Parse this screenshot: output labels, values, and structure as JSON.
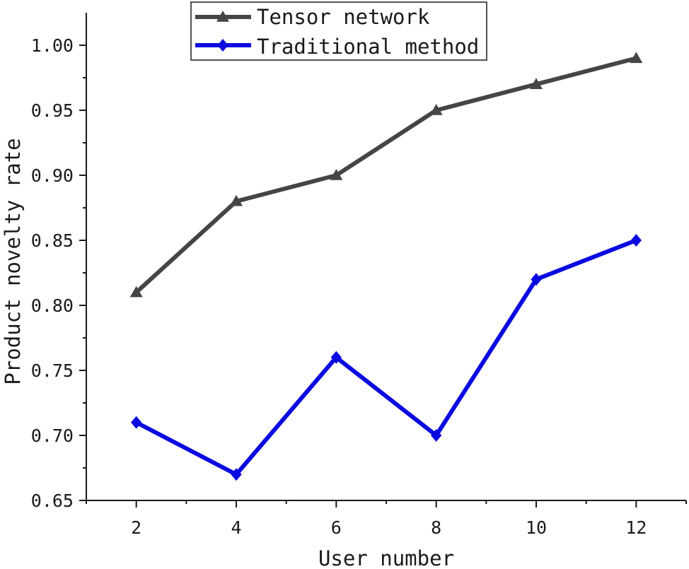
{
  "chart_data": {
    "type": "line",
    "title": "",
    "xlabel": "User number",
    "ylabel": "Product novelty rate",
    "x": [
      2,
      4,
      6,
      8,
      10,
      12
    ],
    "xlim": [
      1,
      13
    ],
    "ylim": [
      0.65,
      1.025
    ],
    "xticks": [
      "2",
      "4",
      "6",
      "8",
      "10",
      "12"
    ],
    "yticks": [
      "0.65",
      "0.70",
      "0.75",
      "0.80",
      "0.85",
      "0.90",
      "0.95",
      "1.00"
    ],
    "grid": false,
    "legend_position": "top-center",
    "series": [
      {
        "name": "Tensor network",
        "values": [
          0.81,
          0.88,
          0.9,
          0.95,
          0.97,
          0.99
        ],
        "color": "#454545",
        "marker": "triangle"
      },
      {
        "name": "Traditional method",
        "values": [
          0.71,
          0.67,
          0.76,
          0.7,
          0.82,
          0.85
        ],
        "color": "#0a0ae0",
        "marker": "diamond"
      }
    ]
  }
}
